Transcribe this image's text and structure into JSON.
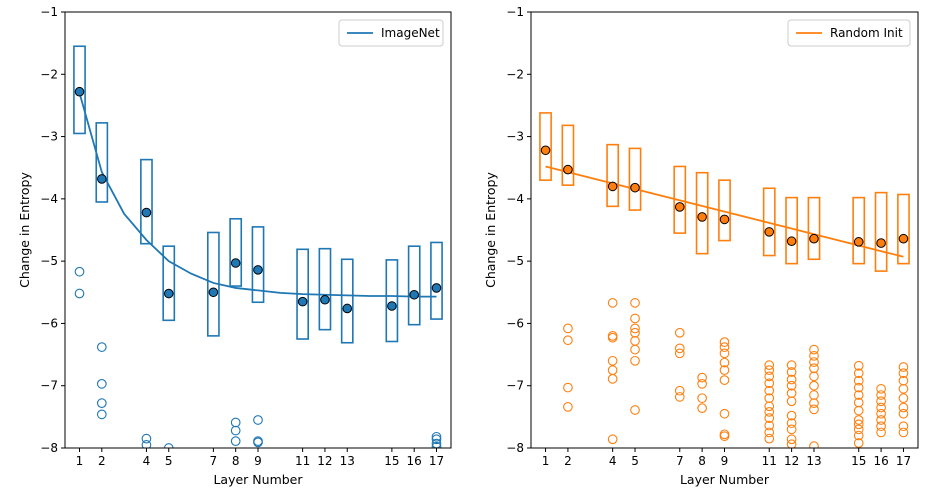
{
  "chart_data": [
    {
      "type": "box",
      "title": "",
      "xlabel": "Layer Number",
      "ylabel": "Change in Entropy",
      "xticks": [
        1,
        2,
        4,
        5,
        7,
        8,
        9,
        11,
        12,
        13,
        15,
        16,
        17
      ],
      "yticks": [
        -8,
        -7,
        -6,
        -5,
        -4,
        -3,
        -2,
        -1
      ],
      "ylim": [
        -8,
        -1
      ],
      "xlim": [
        0.35,
        17.65
      ],
      "legend": {
        "label": "ImageNet",
        "position": "top-right"
      },
      "color": "#1f77b4",
      "boxes": [
        {
          "layer": 1,
          "q1": -2.95,
          "q3": -1.55,
          "median": -2.28
        },
        {
          "layer": 2,
          "q1": -4.05,
          "q3": -2.78,
          "median": -3.68
        },
        {
          "layer": 4,
          "q1": -4.72,
          "q3": -3.37,
          "median": -4.22
        },
        {
          "layer": 5,
          "q1": -5.95,
          "q3": -4.76,
          "median": -5.52
        },
        {
          "layer": 7,
          "q1": -6.2,
          "q3": -4.54,
          "median": -5.5
        },
        {
          "layer": 8,
          "q1": -5.4,
          "q3": -4.32,
          "median": -5.03
        },
        {
          "layer": 9,
          "q1": -5.66,
          "q3": -4.45,
          "median": -5.14
        },
        {
          "layer": 11,
          "q1": -6.25,
          "q3": -4.81,
          "median": -5.65
        },
        {
          "layer": 12,
          "q1": -6.1,
          "q3": -4.8,
          "median": -5.62
        },
        {
          "layer": 13,
          "q1": -6.31,
          "q3": -4.97,
          "median": -5.76
        },
        {
          "layer": 15,
          "q1": -6.29,
          "q3": -4.98,
          "median": -5.72
        },
        {
          "layer": 16,
          "q1": -6.02,
          "q3": -4.76,
          "median": -5.54
        },
        {
          "layer": 17,
          "q1": -5.93,
          "q3": -4.7,
          "median": -5.43
        }
      ],
      "outliers": [
        {
          "layer": 1,
          "values": [
            -5.17,
            -5.52
          ]
        },
        {
          "layer": 2,
          "values": [
            -6.38,
            -6.97,
            -7.28,
            -7.46
          ]
        },
        {
          "layer": 4,
          "values": [
            -7.85,
            -7.95
          ]
        },
        {
          "layer": 5,
          "values": [
            -8.0
          ]
        },
        {
          "layer": 8,
          "values": [
            -7.59,
            -7.72,
            -7.89
          ]
        },
        {
          "layer": 9,
          "values": [
            -7.55,
            -7.89,
            -7.91
          ]
        },
        {
          "layer": 17,
          "values": [
            -7.82,
            -7.86,
            -7.93,
            -7.98
          ]
        }
      ],
      "fit_line": {
        "x": [
          1,
          2,
          3,
          4,
          5,
          6,
          7,
          8,
          9,
          10,
          11,
          12,
          13,
          14,
          15,
          16,
          17
        ],
        "y": [
          -2.3,
          -3.57,
          -4.24,
          -4.66,
          -5.0,
          -5.2,
          -5.35,
          -5.43,
          -5.47,
          -5.51,
          -5.53,
          -5.54,
          -5.55,
          -5.56,
          -5.56,
          -5.57,
          -5.57
        ]
      }
    },
    {
      "type": "box",
      "title": "",
      "xlabel": "Layer Number",
      "ylabel": "Change in Entropy",
      "xticks": [
        1,
        2,
        4,
        5,
        7,
        8,
        9,
        11,
        12,
        13,
        15,
        16,
        17
      ],
      "yticks": [
        -8,
        -7,
        -6,
        -5,
        -4,
        -3,
        -2,
        -1
      ],
      "ylim": [
        -8,
        -1
      ],
      "xlim": [
        0.35,
        17.65
      ],
      "legend": {
        "label": "Random Init",
        "position": "top-right"
      },
      "color": "#ff7f0e",
      "boxes": [
        {
          "layer": 1,
          "q1": -3.7,
          "q3": -2.62,
          "median": -3.22
        },
        {
          "layer": 2,
          "q1": -3.78,
          "q3": -2.82,
          "median": -3.53
        },
        {
          "layer": 4,
          "q1": -4.12,
          "q3": -3.13,
          "median": -3.8
        },
        {
          "layer": 5,
          "q1": -4.18,
          "q3": -3.19,
          "median": -3.82
        },
        {
          "layer": 7,
          "q1": -4.55,
          "q3": -3.48,
          "median": -4.13
        },
        {
          "layer": 8,
          "q1": -4.88,
          "q3": -3.58,
          "median": -4.29
        },
        {
          "layer": 9,
          "q1": -4.67,
          "q3": -3.7,
          "median": -4.33
        },
        {
          "layer": 11,
          "q1": -4.91,
          "q3": -3.83,
          "median": -4.53
        },
        {
          "layer": 12,
          "q1": -5.04,
          "q3": -3.98,
          "median": -4.68
        },
        {
          "layer": 13,
          "q1": -4.97,
          "q3": -3.98,
          "median": -4.64
        },
        {
          "layer": 15,
          "q1": -5.04,
          "q3": -3.98,
          "median": -4.69
        },
        {
          "layer": 16,
          "q1": -5.16,
          "q3": -3.9,
          "median": -4.71
        },
        {
          "layer": 17,
          "q1": -5.04,
          "q3": -3.93,
          "median": -4.64
        }
      ],
      "outliers": [
        {
          "layer": 1,
          "values": []
        },
        {
          "layer": 2,
          "values": [
            -6.08,
            -6.27,
            -7.03,
            -7.34
          ]
        },
        {
          "layer": 4,
          "values": [
            -5.67,
            -6.2,
            -6.23,
            -6.6,
            -6.75,
            -6.89,
            -7.86
          ]
        },
        {
          "layer": 5,
          "values": [
            -5.67,
            -5.92,
            -6.08,
            -6.15,
            -6.28,
            -6.42,
            -6.6,
            -7.39
          ]
        },
        {
          "layer": 7,
          "values": [
            -6.15,
            -6.4,
            -6.48,
            -7.08,
            -7.18
          ]
        },
        {
          "layer": 8,
          "values": [
            -6.87,
            -6.97,
            -7.2,
            -7.36
          ]
        },
        {
          "layer": 9,
          "values": [
            -6.3,
            -6.38,
            -6.48,
            -6.63,
            -6.75,
            -6.91,
            -7.45,
            -7.78,
            -7.81
          ]
        },
        {
          "layer": 11,
          "values": [
            -6.67,
            -6.75,
            -6.85,
            -6.96,
            -7.08,
            -7.2,
            -7.33,
            -7.42,
            -7.52,
            -7.64,
            -7.75,
            -7.85
          ]
        },
        {
          "layer": 12,
          "values": [
            -6.67,
            -6.78,
            -6.9,
            -7.0,
            -7.12,
            -7.25,
            -7.48,
            -7.6,
            -7.7,
            -7.86,
            -7.94
          ]
        },
        {
          "layer": 13,
          "values": [
            -6.42,
            -6.52,
            -6.62,
            -6.72,
            -6.85,
            -7.0,
            -7.15,
            -7.28,
            -7.38,
            -7.97
          ]
        },
        {
          "layer": 15,
          "values": [
            -6.68,
            -6.8,
            -6.92,
            -7.03,
            -7.15,
            -7.27,
            -7.4,
            -7.55,
            -7.62,
            -7.7,
            -7.8,
            -7.92
          ]
        },
        {
          "layer": 16,
          "values": [
            -7.05,
            -7.15,
            -7.25,
            -7.35,
            -7.45,
            -7.55,
            -7.65,
            -7.75
          ]
        },
        {
          "layer": 17,
          "values": [
            -6.7,
            -6.8,
            -6.92,
            -7.05,
            -7.2,
            -7.35,
            -7.45,
            -7.65,
            -7.75
          ]
        }
      ],
      "fit_line": {
        "x": [
          1,
          17
        ],
        "y": [
          -3.48,
          -4.93
        ]
      }
    }
  ]
}
